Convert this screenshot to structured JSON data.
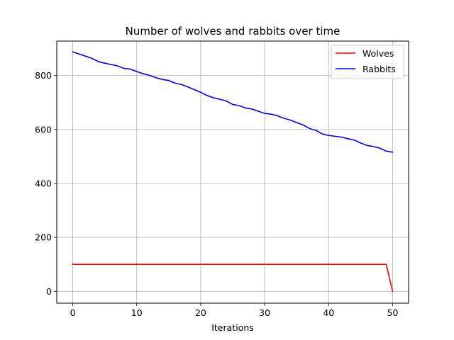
{
  "chart_data": {
    "type": "line",
    "title": "Number of wolves and rabbits over time",
    "xlabel": "Iterations",
    "ylabel": "",
    "xlim": [
      -2.5,
      52.5
    ],
    "ylim": [
      -44,
      928
    ],
    "xticks": [
      0,
      10,
      20,
      30,
      40,
      50
    ],
    "yticks": [
      0,
      200,
      400,
      600,
      800
    ],
    "grid": true,
    "legend_position": "top-right",
    "x": [
      0,
      1,
      2,
      3,
      4,
      5,
      6,
      7,
      8,
      9,
      10,
      11,
      12,
      13,
      14,
      15,
      16,
      17,
      18,
      19,
      20,
      21,
      22,
      23,
      24,
      25,
      26,
      27,
      28,
      29,
      30,
      31,
      32,
      33,
      34,
      35,
      36,
      37,
      38,
      39,
      40,
      41,
      42,
      43,
      44,
      45,
      46,
      47,
      48,
      49,
      50
    ],
    "series": [
      {
        "name": "Wolves",
        "color": "#ff0000",
        "values": [
          100,
          100,
          100,
          100,
          100,
          100,
          100,
          100,
          100,
          100,
          100,
          100,
          100,
          100,
          100,
          100,
          100,
          100,
          100,
          100,
          100,
          100,
          100,
          100,
          100,
          100,
          100,
          100,
          100,
          100,
          100,
          100,
          100,
          100,
          100,
          100,
          100,
          100,
          100,
          100,
          100,
          100,
          100,
          100,
          100,
          100,
          100,
          100,
          100,
          100,
          0
        ]
      },
      {
        "name": "Rabbits",
        "color": "#0000ff",
        "values": [
          888,
          880,
          872,
          864,
          852,
          846,
          841,
          836,
          827,
          824,
          815,
          807,
          801,
          792,
          786,
          782,
          772,
          767,
          758,
          748,
          738,
          726,
          718,
          712,
          706,
          693,
          689,
          680,
          676,
          668,
          660,
          657,
          651,
          642,
          635,
          626,
          617,
          604,
          597,
          584,
          578,
          575,
          572,
          566,
          561,
          550,
          541,
          537,
          531,
          520,
          516
        ]
      }
    ]
  }
}
